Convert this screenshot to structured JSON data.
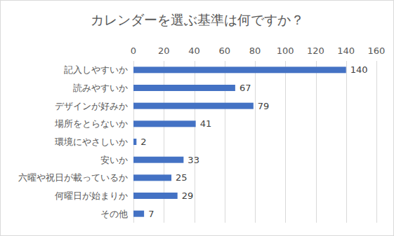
{
  "chart_data": {
    "type": "bar",
    "orientation": "horizontal",
    "title": "カレンダーを選ぶ基準は何ですか？",
    "categories": [
      "記入しやすいか",
      "読みやすいか",
      "デザインが好みか",
      "場所をとらないか",
      "環境にやさしいか",
      "安いか",
      "六曜や祝日が載っているか",
      "何曜日が始まりか",
      "その他"
    ],
    "values": [
      140,
      67,
      79,
      41,
      2,
      33,
      25,
      29,
      7
    ],
    "color": "#4472c4",
    "xlim": [
      0,
      160
    ],
    "xticks": [
      0,
      20,
      40,
      60,
      80,
      100,
      120,
      140,
      160
    ],
    "grid": true,
    "data_labels": true
  }
}
